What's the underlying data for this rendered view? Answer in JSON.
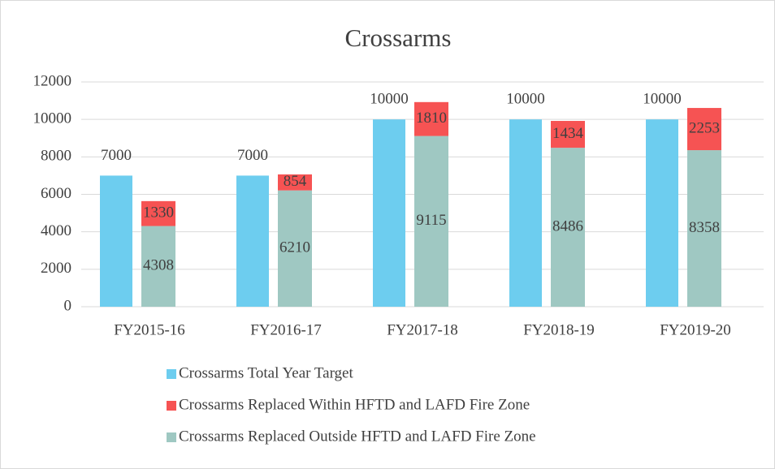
{
  "chart_data": {
    "type": "bar",
    "title": "Crossarms",
    "categories": [
      "FY2015-16",
      "FY2016-17",
      "FY2017-18",
      "FY2018-19",
      "FY2019-20"
    ],
    "series": [
      {
        "name": "Crossarms Total Year Target",
        "color": "#6dcdef",
        "values": [
          7000,
          7000,
          10000,
          10000,
          10000
        ]
      },
      {
        "name": "Crossarms Replaced Within HFTD and LAFD Fire Zone",
        "color": "#f65353",
        "values": [
          1330,
          854,
          1810,
          1434,
          2253
        ]
      },
      {
        "name": "Crossarms Replaced Outside HFTD and LAFD Fire Zone",
        "color": "#9fc8c2",
        "values": [
          4308,
          6210,
          9115,
          8486,
          8358
        ]
      }
    ],
    "ylim": [
      0,
      12000
    ],
    "yticks": [
      0,
      2000,
      4000,
      6000,
      8000,
      10000,
      12000
    ],
    "grid": true,
    "legend": "bottom"
  }
}
